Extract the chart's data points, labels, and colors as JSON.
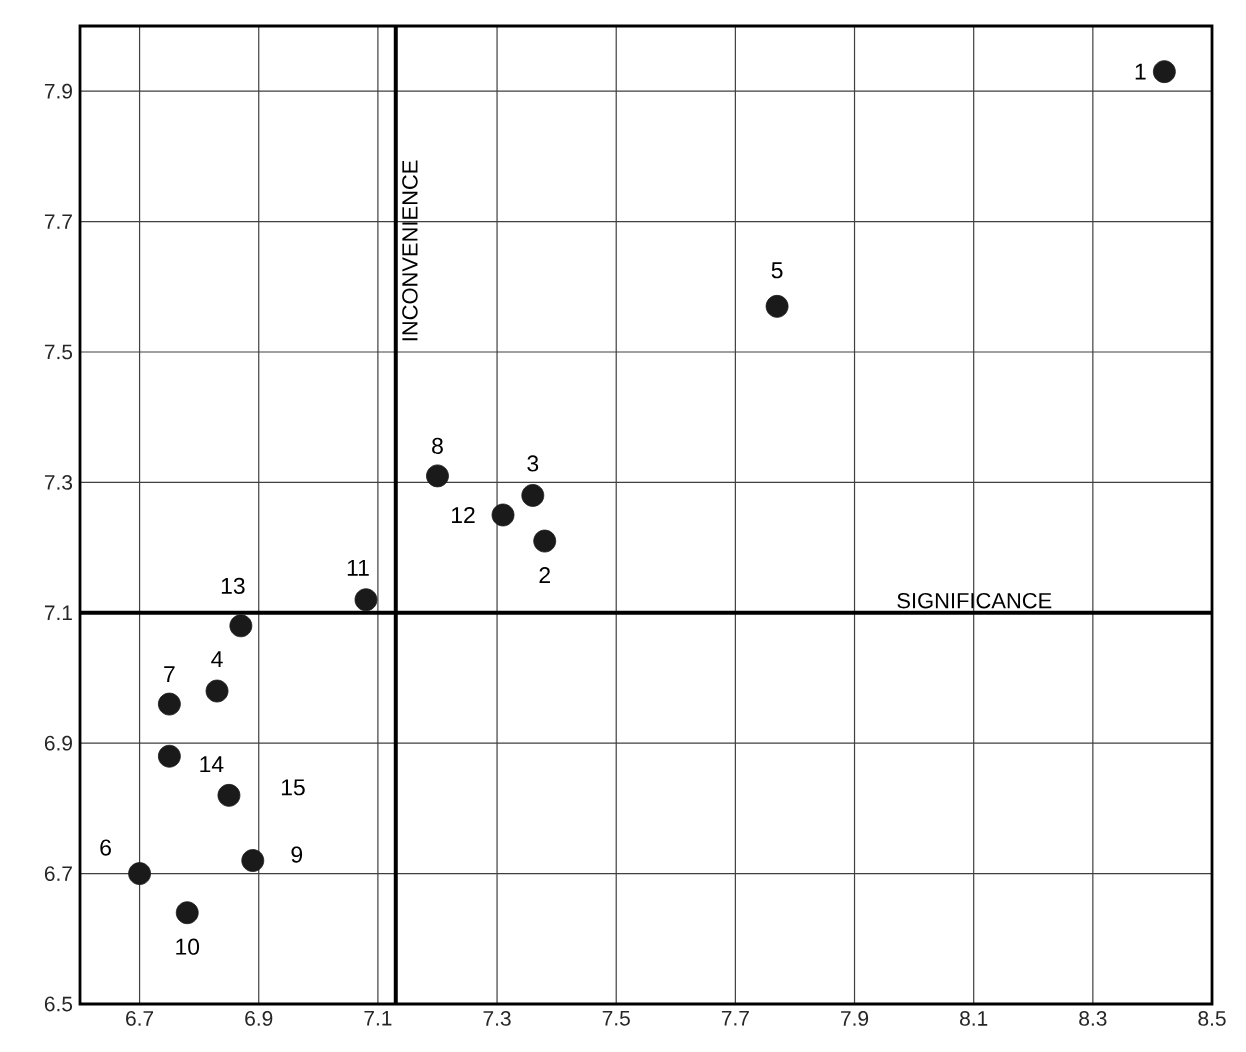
{
  "chart_data": {
    "type": "scatter",
    "x": [
      8.42,
      7.38,
      7.36,
      6.83,
      7.77,
      6.7,
      6.75,
      7.2,
      6.89,
      6.78,
      7.08,
      7.31,
      6.87,
      6.75,
      6.85
    ],
    "values": [
      7.93,
      7.21,
      7.28,
      6.98,
      7.57,
      6.7,
      6.96,
      7.31,
      6.72,
      6.64,
      7.12,
      7.25,
      7.08,
      6.88,
      6.82
    ],
    "color": "#1a1a1a",
    "marker": "circle",
    "grid": true,
    "xlim": [
      6.6,
      8.5
    ],
    "ylim": [
      6.5,
      8.0
    ],
    "xticks": [
      6.7,
      6.9,
      7.1,
      7.3,
      7.5,
      7.7,
      7.9,
      8.1,
      8.3,
      8.5
    ],
    "yticks": [
      6.5,
      6.7,
      6.9,
      7.1,
      7.3,
      7.5,
      7.7,
      7.9
    ],
    "ref_lines": [
      {
        "axis": "x",
        "value": 7.13,
        "label": "INCONVENIENCE"
      },
      {
        "axis": "y",
        "value": 7.1,
        "label": "SIGNIFICANCE"
      }
    ],
    "annotations": [
      {
        "text": "1",
        "x": 8.42,
        "y": 7.93
      },
      {
        "text": "2",
        "x": 7.38,
        "y": 7.21
      },
      {
        "text": "3",
        "x": 7.36,
        "y": 7.28
      },
      {
        "text": "4",
        "x": 6.83,
        "y": 6.98
      },
      {
        "text": "5",
        "x": 7.77,
        "y": 7.57
      },
      {
        "text": "6",
        "x": 6.7,
        "y": 6.7
      },
      {
        "text": "7",
        "x": 6.75,
        "y": 6.96
      },
      {
        "text": "8",
        "x": 7.2,
        "y": 7.31
      },
      {
        "text": "9",
        "x": 6.89,
        "y": 6.72
      },
      {
        "text": "10",
        "x": 6.78,
        "y": 6.64
      },
      {
        "text": "11",
        "x": 7.08,
        "y": 7.12
      },
      {
        "text": "12",
        "x": 7.31,
        "y": 7.25
      },
      {
        "text": "13",
        "x": 6.87,
        "y": 7.08
      },
      {
        "text": "14",
        "x": 6.75,
        "y": 6.88
      },
      {
        "text": "15",
        "x": 6.85,
        "y": 6.82
      }
    ]
  }
}
